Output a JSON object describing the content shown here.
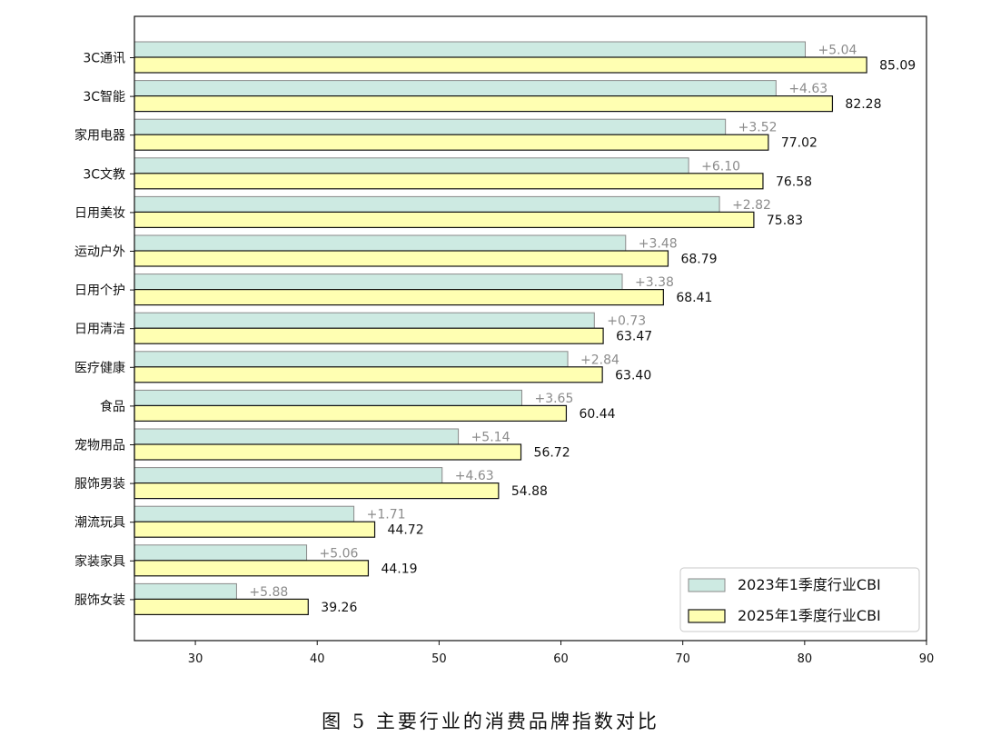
{
  "caption": "图 5 主要行业的消费品牌指数对比",
  "chart_data": {
    "type": "bar",
    "orientation": "horizontal",
    "categories": [
      "3C通讯",
      "3C智能",
      "家用电器",
      "3C文教",
      "日用美妆",
      "运动户外",
      "日用个护",
      "日用清洁",
      "医疗健康",
      "食品",
      "宠物用品",
      "服饰男装",
      "潮流玩具",
      "家装家具",
      "服饰女装"
    ],
    "series": [
      {
        "name": "2023年1季度行业CBI",
        "values": [
          80.05,
          77.65,
          73.5,
          70.48,
          73.01,
          65.31,
          65.03,
          62.74,
          60.56,
          56.79,
          51.58,
          50.25,
          43.01,
          39.13,
          33.38
        ],
        "color": "#cdeae2",
        "edge": "#8a8a8a"
      },
      {
        "name": "2025年1季度行业CBI",
        "values": [
          85.09,
          82.28,
          77.02,
          76.58,
          75.83,
          68.79,
          68.41,
          63.47,
          63.4,
          60.44,
          56.72,
          54.88,
          44.72,
          44.19,
          39.26
        ],
        "color": "#ffffb2",
        "edge": "#111111"
      }
    ],
    "value_labels": [
      "85.09",
      "82.28",
      "77.02",
      "76.58",
      "75.83",
      "68.79",
      "68.41",
      "63.47",
      "63.40",
      "60.44",
      "56.72",
      "54.88",
      "44.72",
      "44.19",
      "39.26"
    ],
    "change_labels": [
      "+5.04",
      "+4.63",
      "+3.52",
      "+6.10",
      "+2.82",
      "+3.48",
      "+3.38",
      "+0.73",
      "+2.84",
      "+3.65",
      "+5.14",
      "+4.63",
      "+1.71",
      "+5.06",
      "+5.88"
    ],
    "xticks": [
      30,
      40,
      50,
      60,
      70,
      80,
      90
    ],
    "xlim": [
      25,
      90
    ],
    "grid": false,
    "legend_position": "lower-right",
    "title": "",
    "xlabel": "",
    "ylabel": ""
  }
}
